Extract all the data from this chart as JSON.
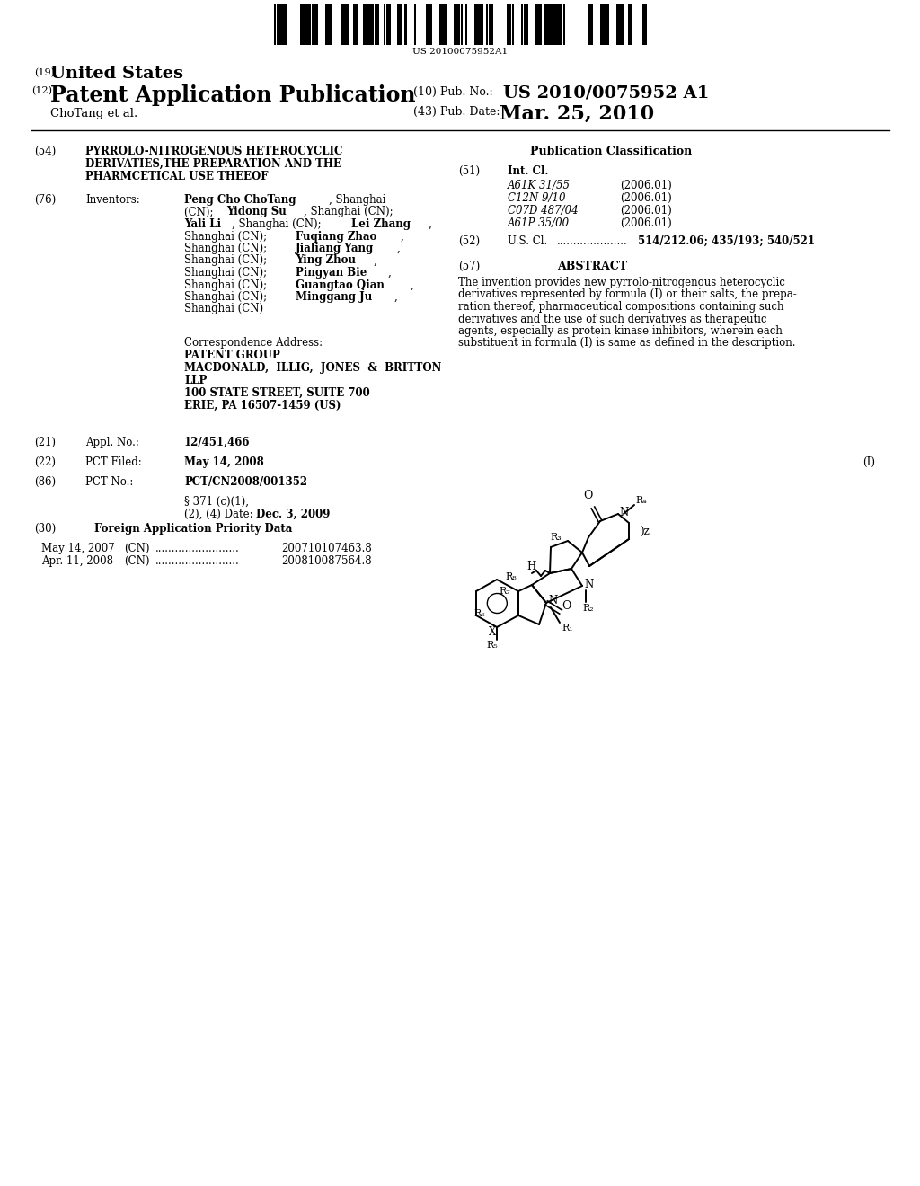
{
  "background_color": "#ffffff",
  "barcode_text": "US 20100075952A1",
  "header_19": "(19)",
  "header_19_text": "United States",
  "header_12": "(12)",
  "header_12_text": "Patent Application Publication",
  "header_10_label": "(10) Pub. No.:",
  "header_10_value": "US 2010/0075952 A1",
  "author_line": "ChoTang et al.",
  "header_43_label": "(43) Pub. Date:",
  "header_43_value": "Mar. 25, 2010",
  "field_54_label": "(54)",
  "field_54_title_line1": "PYRROLO-NITROGENOUS HETEROCYCLIC",
  "field_54_title_line2": "DERIVATIES,THE PREPARATION AND THE",
  "field_54_title_line3": "PHARMCETICAL USE THEEOF",
  "field_76_label": "(76)",
  "field_76_name": "Inventors:",
  "inv_lines": [
    [
      [
        "Peng Cho ChoTang",
        true
      ],
      [
        ", Shanghai",
        false
      ]
    ],
    [
      [
        "(CN); ",
        false
      ],
      [
        "Yidong Su",
        true
      ],
      [
        ", Shanghai (CN);",
        false
      ]
    ],
    [
      [
        "Yali Li",
        true
      ],
      [
        ", Shanghai (CN); ",
        false
      ],
      [
        "Lei Zhang",
        true
      ],
      [
        ",",
        false
      ]
    ],
    [
      [
        "Shanghai (CN); ",
        false
      ],
      [
        "Fuqiang Zhao",
        true
      ],
      [
        ",",
        false
      ]
    ],
    [
      [
        "Shanghai (CN); ",
        false
      ],
      [
        "Jialiang Yang",
        true
      ],
      [
        ",",
        false
      ]
    ],
    [
      [
        "Shanghai (CN); ",
        false
      ],
      [
        "Ying Zhou",
        true
      ],
      [
        ",",
        false
      ]
    ],
    [
      [
        "Shanghai (CN); ",
        false
      ],
      [
        "Pingyan Bie",
        true
      ],
      [
        ",",
        false
      ]
    ],
    [
      [
        "Shanghai (CN); ",
        false
      ],
      [
        "Guangtao Qian",
        true
      ],
      [
        ",",
        false
      ]
    ],
    [
      [
        "Shanghai (CN); ",
        false
      ],
      [
        "Minggang Ju",
        true
      ],
      [
        ",",
        false
      ]
    ],
    [
      [
        "Shanghai (CN)",
        false
      ]
    ]
  ],
  "correspondence_label": "Correspondence Address:",
  "correspondence_line1": "PATENT GROUP",
  "correspondence_line2": "MACDONALD,  ILLIG,  JONES  &  BRITTON",
  "correspondence_line3": "LLP",
  "correspondence_line4": "100 STATE STREET, SUITE 700",
  "correspondence_line5": "ERIE, PA 16507-1459 (US)",
  "field_21_label": "(21)",
  "field_21_name": "Appl. No.:",
  "field_21_value": "12/451,466",
  "field_22_label": "(22)",
  "field_22_name": "PCT Filed:",
  "field_22_value": "May 14, 2008",
  "field_86_label": "(86)",
  "field_86_name": "PCT No.:",
  "field_86_value": "PCT/CN2008/001352",
  "field_371_text1": "§ 371 (c)(1),",
  "field_371_text2": "(2), (4) Date:",
  "field_371_value": "Dec. 3, 2009",
  "field_30_label": "(30)",
  "field_30_title": "Foreign Application Priority Data",
  "priority1_date": "May 14, 2007",
  "priority1_country": "(CN)",
  "priority1_dots": ".........................",
  "priority1_number": "200710107463.8",
  "priority2_date": "Apr. 11, 2008",
  "priority2_country": "(CN)",
  "priority2_dots": ".........................",
  "priority2_number": "200810087564.8",
  "pub_class_title": "Publication Classification",
  "field_51_label": "(51)",
  "field_51_name": "Int. Cl.",
  "int_cl_entries": [
    [
      "A61K 31/55",
      "(2006.01)"
    ],
    [
      "C12N 9/10",
      "(2006.01)"
    ],
    [
      "C07D 487/04",
      "(2006.01)"
    ],
    [
      "A61P 35/00",
      "(2006.01)"
    ]
  ],
  "field_52_label": "(52)",
  "field_52_name": "U.S. Cl.",
  "field_52_dots": ".....................",
  "field_52_value": "514/212.06; 435/193; 540/521",
  "field_57_label": "(57)",
  "field_57_title": "ABSTRACT",
  "abstract_text": "The invention provides new pyrrolo-nitrogenous heterocyclic\nderivatives represented by formula (I) or their salts, the prepa-\nration thereof, pharmaceutical compositions containing such\nderivatives and the use of such derivatives as therapeutic\nagents, especially as protein kinase inhibitors, wherein each\nsubstituent in formula (I) is same as defined in the description.",
  "formula_label": "(I)"
}
